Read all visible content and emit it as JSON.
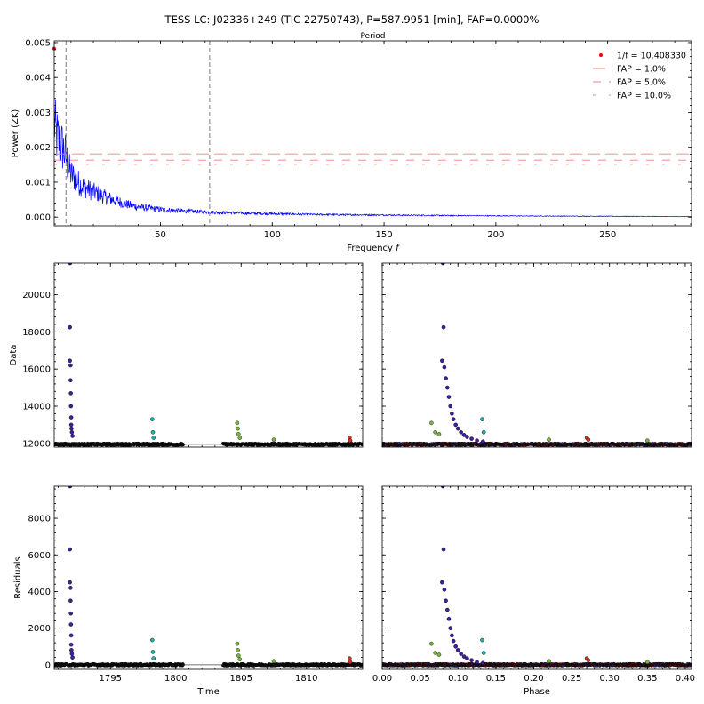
{
  "figure": {
    "title": "TESS LC: J02336+249 (TIC 22750743), P=587.9951 [min], FAP=0.0000%"
  },
  "chart_data": [
    {
      "id": "periodogram",
      "type": "line",
      "top_axis_label": "Period",
      "xlabel": "Frequency $f$",
      "ylabel": "Power (ZK)",
      "xlim": [
        2.5,
        287.5
      ],
      "ylim": [
        -0.00025,
        0.00505
      ],
      "xticks": [
        50,
        100,
        150,
        200,
        250
      ],
      "yticks": [
        0.0,
        0.001,
        0.002,
        0.003,
        0.004,
        0.005
      ],
      "ytick_labels": [
        "0.000",
        "0.001",
        "0.002",
        "0.003",
        "0.004",
        "0.005"
      ],
      "series": [
        {
          "color": "#0000ff",
          "envelope_x": [
            2.5,
            3,
            4,
            5,
            6,
            7,
            8,
            9,
            10,
            12,
            14,
            16,
            18,
            20,
            25,
            30,
            35,
            40,
            50,
            60,
            70,
            80,
            100,
            120,
            150,
            180,
            220,
            260,
            287.5
          ],
          "envelope_y": [
            0.0039,
            0.0034,
            0.0031,
            0.0029,
            0.0028,
            0.0026,
            0.0023,
            0.0019,
            0.0017,
            0.0015,
            0.0013,
            0.0012,
            0.0011,
            0.001,
            0.0008,
            0.00065,
            0.0005,
            0.0004,
            0.0003,
            0.00024,
            0.0002,
            0.00017,
            0.00013,
            0.0001,
            8e-05,
            6e-05,
            4e-05,
            3e-05,
            2e-05
          ]
        }
      ],
      "peak_marker": {
        "x": 2.45,
        "y": 0.00483,
        "color": "#ff0000"
      },
      "vlines": [
        {
          "x": 7.8,
          "color": "#999999",
          "style": "dashed"
        },
        {
          "x": 72.0,
          "color": "#999999",
          "style": "dashed"
        }
      ],
      "fap_lines": [
        {
          "level": 0.00181,
          "color": "#f08080",
          "dash": "14,6"
        },
        {
          "level": 0.00163,
          "color": "#f08080",
          "dash": "9,9"
        },
        {
          "level": 0.00151,
          "color": "#f08080",
          "dash": "3,15"
        }
      ],
      "legend": {
        "placement": "top-right",
        "entries": [
          "$1/f = 0.408330$",
          "FAP = 1.0%",
          "FAP = 5.0%",
          "FAP = 10.0%"
        ]
      }
    },
    {
      "id": "data-time",
      "type": "scatter",
      "ylabel": "Data",
      "xlabel": "",
      "xlim": [
        1790.7,
        1814.3
      ],
      "ylim": [
        11800,
        21700
      ],
      "xticks": [
        1795,
        1800,
        1805,
        1810
      ],
      "yticks": [
        12000,
        14000,
        16000,
        18000,
        20000
      ],
      "baseline": 11950,
      "points_x": [
        1791.9,
        1791.9,
        1791.9,
        1791.95,
        1791.95,
        1791.97,
        1791.98,
        1792.0,
        1792.0,
        1792.02,
        1792.05,
        1792.1,
        1798.2,
        1798.25,
        1798.3,
        1804.7,
        1804.75,
        1804.8,
        1804.9,
        1807.5,
        1813.3,
        1813.35
      ],
      "points_y": [
        21700,
        18250,
        16450,
        16200,
        15400,
        14700,
        14000,
        13400,
        13000,
        12800,
        12600,
        12400,
        13300,
        12600,
        12300,
        13100,
        12800,
        12500,
        12300,
        12200,
        12300,
        12150
      ],
      "point_colors": [
        "#3d1fa0",
        "#3d1fa0",
        "#3d1fa0",
        "#3d1fa0",
        "#3d1fa0",
        "#3d1fa0",
        "#3d1fa0",
        "#3d1fa0",
        "#3d1fa0",
        "#3d1fa0",
        "#3d1fa0",
        "#3d1fa0",
        "#20b2aa",
        "#20b2aa",
        "#20b2aa",
        "#7cb342",
        "#7cb342",
        "#7cb342",
        "#7cb342",
        "#7cb342",
        "#d73027",
        "#d73027"
      ],
      "gaps": [
        [
          1800.6,
          1803.6
        ]
      ]
    },
    {
      "id": "data-phase",
      "type": "scatter",
      "xlim": [
        0.0,
        0.4083
      ],
      "ylim": [
        11800,
        21700
      ],
      "xticks": [
        0.0,
        0.05,
        0.1,
        0.15,
        0.2,
        0.25,
        0.3,
        0.35,
        0.4
      ],
      "yticks": [
        12000,
        14000,
        16000,
        18000,
        20000
      ],
      "baseline": 11950,
      "points_x": [
        0.08,
        0.081,
        0.079,
        0.082,
        0.084,
        0.086,
        0.088,
        0.09,
        0.092,
        0.094,
        0.097,
        0.1,
        0.104,
        0.108,
        0.112,
        0.118,
        0.125,
        0.133,
        0.065,
        0.07,
        0.075,
        0.132,
        0.134,
        0.27,
        0.272,
        0.22,
        0.35
      ],
      "points_y": [
        21700,
        18250,
        16450,
        16100,
        15500,
        15000,
        14500,
        14000,
        13600,
        13300,
        13000,
        12800,
        12600,
        12450,
        12350,
        12250,
        12150,
        12100,
        13100,
        12600,
        12500,
        13300,
        12600,
        12300,
        12200,
        12200,
        12150
      ],
      "point_colors": [
        "#3d1fa0",
        "#3d1fa0",
        "#3d1fa0",
        "#3d1fa0",
        "#3d1fa0",
        "#3d1fa0",
        "#3d1fa0",
        "#3d1fa0",
        "#3d1fa0",
        "#3d1fa0",
        "#3d1fa0",
        "#3d1fa0",
        "#3d1fa0",
        "#3d1fa0",
        "#3d1fa0",
        "#3d1fa0",
        "#3d1fa0",
        "#3d1fa0",
        "#7cb342",
        "#7cb342",
        "#7cb342",
        "#20b2aa",
        "#20b2aa",
        "#d73027",
        "#d73027",
        "#7cb342",
        "#7cb342"
      ]
    },
    {
      "id": "residuals-time",
      "type": "scatter",
      "ylabel": "Residuals",
      "xlabel": "Time",
      "xlim": [
        1790.7,
        1814.3
      ],
      "ylim": [
        -250,
        9750
      ],
      "xticks": [
        1795,
        1800,
        1805,
        1810
      ],
      "yticks": [
        0,
        2000,
        4000,
        6000,
        8000
      ],
      "baseline": 0,
      "points_x": [
        1791.9,
        1791.9,
        1791.9,
        1791.95,
        1791.95,
        1791.97,
        1791.98,
        1792.0,
        1792.0,
        1792.02,
        1792.05,
        1792.1,
        1798.2,
        1798.25,
        1798.3,
        1804.7,
        1804.75,
        1804.8,
        1804.9,
        1807.5,
        1813.3,
        1813.35
      ],
      "points_y": [
        9750,
        6300,
        4500,
        4200,
        3500,
        2800,
        2200,
        1600,
        1100,
        800,
        600,
        400,
        1350,
        700,
        350,
        1150,
        800,
        500,
        300,
        200,
        350,
        150
      ],
      "point_colors": [
        "#3d1fa0",
        "#3d1fa0",
        "#3d1fa0",
        "#3d1fa0",
        "#3d1fa0",
        "#3d1fa0",
        "#3d1fa0",
        "#3d1fa0",
        "#3d1fa0",
        "#3d1fa0",
        "#3d1fa0",
        "#3d1fa0",
        "#20b2aa",
        "#20b2aa",
        "#20b2aa",
        "#7cb342",
        "#7cb342",
        "#7cb342",
        "#7cb342",
        "#7cb342",
        "#d73027",
        "#d73027"
      ],
      "gaps": [
        [
          1800.6,
          1803.6
        ]
      ]
    },
    {
      "id": "residuals-phase",
      "type": "scatter",
      "xlabel": "Phase",
      "xlim": [
        0.0,
        0.4083
      ],
      "ylim": [
        -250,
        9750
      ],
      "xticks": [
        0.0,
        0.05,
        0.1,
        0.15,
        0.2,
        0.25,
        0.3,
        0.35,
        0.4
      ],
      "xtick_labels": [
        "0.00",
        "0.05",
        "0.10",
        "0.15",
        "0.20",
        "0.25",
        "0.30",
        "0.35",
        "0.40"
      ],
      "yticks": [
        0,
        2000,
        4000,
        6000,
        8000
      ],
      "baseline": 0,
      "points_x": [
        0.08,
        0.081,
        0.079,
        0.082,
        0.084,
        0.086,
        0.088,
        0.09,
        0.092,
        0.094,
        0.097,
        0.1,
        0.104,
        0.108,
        0.112,
        0.118,
        0.125,
        0.133,
        0.065,
        0.07,
        0.075,
        0.132,
        0.134,
        0.27,
        0.272,
        0.22,
        0.35
      ],
      "points_y": [
        9750,
        6300,
        4500,
        4100,
        3500,
        3000,
        2500,
        2000,
        1600,
        1300,
        1000,
        800,
        600,
        450,
        350,
        250,
        150,
        100,
        1150,
        650,
        550,
        1350,
        650,
        350,
        250,
        200,
        150
      ],
      "point_colors": [
        "#3d1fa0",
        "#3d1fa0",
        "#3d1fa0",
        "#3d1fa0",
        "#3d1fa0",
        "#3d1fa0",
        "#3d1fa0",
        "#3d1fa0",
        "#3d1fa0",
        "#3d1fa0",
        "#3d1fa0",
        "#3d1fa0",
        "#3d1fa0",
        "#3d1fa0",
        "#3d1fa0",
        "#3d1fa0",
        "#3d1fa0",
        "#3d1fa0",
        "#7cb342",
        "#7cb342",
        "#7cb342",
        "#20b2aa",
        "#20b2aa",
        "#d73027",
        "#d73027",
        "#7cb342",
        "#7cb342"
      ]
    }
  ]
}
